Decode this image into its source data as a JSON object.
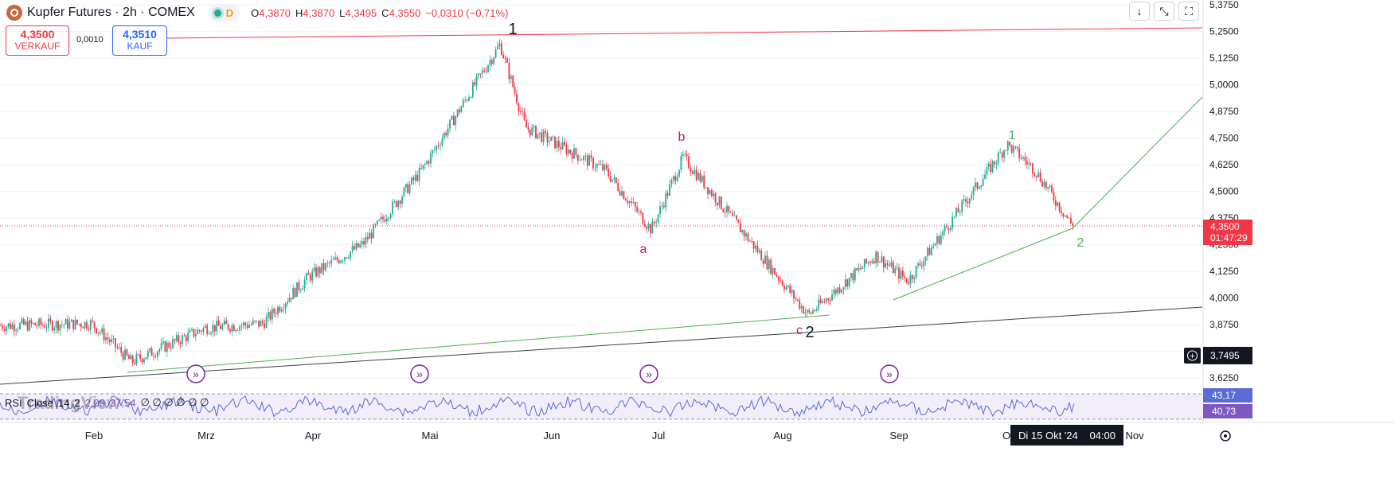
{
  "header": {
    "symbol": "Kupfer Futures · 2h · COMEX",
    "market_status_icon": "market-open-dot",
    "data_type": "D",
    "ohlc": {
      "o_label": "O",
      "o": "4,3870",
      "h_label": "H",
      "h": "4,3870",
      "l_label": "L",
      "l": "4,3495",
      "c_label": "C",
      "c": "4,3550",
      "change": "−0,0310 (−0,71%)"
    }
  },
  "trade": {
    "sell_price": "4,3500",
    "sell_label": "VERKAUF",
    "spread": "0,0010",
    "buy_price": "4,3510",
    "buy_label": "KAUF"
  },
  "toolbar": {
    "icons": [
      "arrow-down-icon",
      "collapse-icon",
      "fullscreen-icon"
    ]
  },
  "price_axis": {
    "ticks": [
      "5,3750",
      "5,2500",
      "5,1250",
      "5,0000",
      "4,8750",
      "4,7500",
      "4,6250",
      "4,5000",
      "4,3750",
      "4,2500",
      "4,1250",
      "4,0000",
      "3,8750",
      "3,7500",
      "3,6250"
    ],
    "last_price": "4,3500",
    "countdown": "01:47:29",
    "crosshair_price": "3,7495",
    "rsi_upper": "43,17",
    "rsi_lower": "40,73"
  },
  "time_axis": {
    "labels": [
      "Feb",
      "Mrz",
      "Apr",
      "Mai",
      "Jun",
      "Jul",
      "Aug",
      "Sep",
      "O",
      "Nov"
    ],
    "crosshair_date": "Di 15 Okt '24",
    "crosshair_time": "04:00"
  },
  "annotations": {
    "wave_major_1": "1",
    "wave_major_2": "2",
    "wave_a": "a",
    "wave_b": "b",
    "wave_c": "c",
    "wave_minor_1": "1",
    "wave_minor_2": "2"
  },
  "rsi": {
    "label": "RSI",
    "source": "Close",
    "length": "14",
    "period": "2",
    "value1": "2,09",
    "value2": "37,54",
    "na": "∅ ∅ ∅ ∅ ∅ ∅"
  },
  "watermark": "TradingView",
  "colors": {
    "down": "#f23645",
    "up": "#22ab94",
    "wave_red": "#c2185b",
    "wave_green": "#4caf50",
    "rsi_line": "#5b6bd6",
    "rsi_band": "#7e57c2"
  },
  "chart_data": {
    "type": "candlestick",
    "title": "Kupfer Futures · 2h · COMEX",
    "ylim": [
      3.625,
      5.375
    ],
    "x_labels": [
      "Feb",
      "Mrz",
      "Apr",
      "Mai",
      "Jun",
      "Jul",
      "Aug",
      "Sep",
      "Okt",
      "Nov"
    ],
    "series": [
      {
        "name": "Kupfer Futures",
        "points": [
          [
            "Jan",
            3.87
          ],
          [
            "Feb",
            3.88
          ],
          [
            "Feb",
            3.7
          ],
          [
            "Mrz",
            3.86
          ],
          [
            "Mrz",
            3.88
          ],
          [
            "Apr",
            4.1
          ],
          [
            "Apr",
            4.25
          ],
          [
            "Mai",
            4.6
          ],
          [
            "Mai",
            5.19
          ],
          [
            "Jun",
            4.8
          ],
          [
            "Jun",
            4.6
          ],
          [
            "Jul",
            4.32
          ],
          [
            "Jul",
            4.66
          ],
          [
            "Aug",
            4.3
          ],
          [
            "Aug",
            3.92
          ],
          [
            "Sep",
            4.2
          ],
          [
            "Sep",
            4.08
          ],
          [
            "Okt",
            4.72
          ],
          [
            "Okt",
            4.6
          ],
          [
            "Okt",
            4.35
          ]
        ]
      }
    ]
  }
}
